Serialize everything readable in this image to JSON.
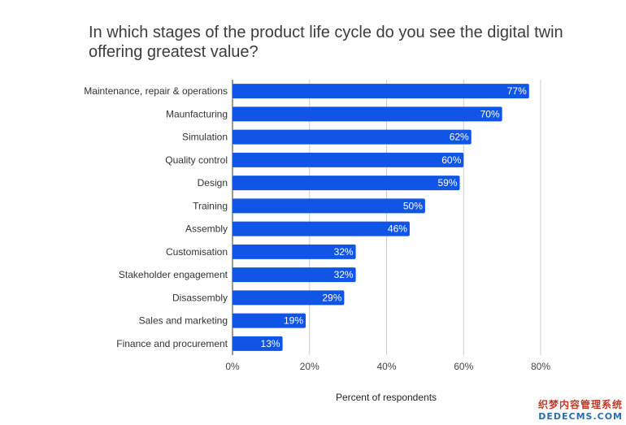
{
  "chart_data": {
    "type": "bar",
    "orientation": "horizontal",
    "title": "In which stages of the product life cycle do you see the digital twin offering greatest value?",
    "xlabel": "Percent of respondents",
    "ylabel": "",
    "categories": [
      "Maintenance, repair & operations",
      "Maunfacturing",
      "Simulation",
      "Quality control",
      "Design",
      "Training",
      "Assembly",
      "Customisation",
      "Stakeholder engagement",
      "Disassembly",
      "Sales and marketing",
      "Finance and procurement"
    ],
    "values": [
      77,
      70,
      62,
      60,
      59,
      50,
      46,
      32,
      32,
      29,
      19,
      13
    ],
    "data_labels": [
      "77%",
      "70%",
      "62%",
      "60%",
      "59%",
      "50%",
      "46%",
      "32%",
      "32%",
      "29%",
      "19%",
      "13%"
    ],
    "xlim": [
      0,
      80
    ],
    "x_ticks": [
      0,
      20,
      40,
      60,
      80
    ],
    "x_tick_labels": [
      "0%",
      "20%",
      "40%",
      "60%",
      "80%"
    ],
    "grid": "vertical",
    "legend": "none",
    "bar_color": "#1155e6"
  },
  "watermark": {
    "line1": "织梦内容管理系统",
    "line2": "DEDECMS.COM"
  }
}
